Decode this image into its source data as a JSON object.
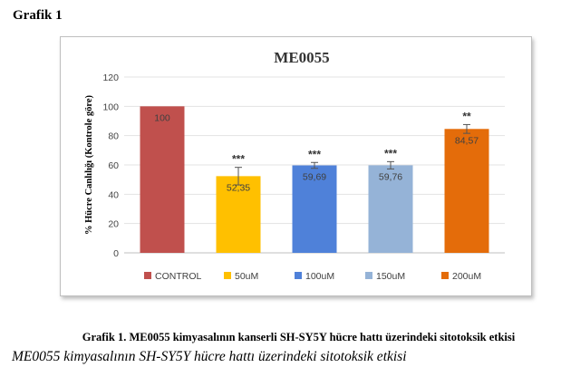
{
  "heading": "Grafik 1",
  "caption": "Grafik    1. ME0055 kimyasalının kanserli SH-SY5Y hücre hattı üzerindeki sitotoksik etkisi",
  "subcaption": "ME0055 kimyasalının SH-SY5Y hücre hattı üzerindeki sitotoksik etkisi",
  "chart_data": {
    "type": "bar",
    "title": "ME0055",
    "ylabel": "% Hücre Canlılığı (Kontrole göre)",
    "xlabel": "",
    "ylim": [
      0,
      120
    ],
    "yticks": [
      0,
      20,
      40,
      60,
      80,
      100,
      120
    ],
    "grid": true,
    "legend_position": "bottom",
    "categories": [
      "CONTROL",
      "50uM",
      "100uM",
      "150uM",
      "200uM"
    ],
    "values": [
      100,
      52.35,
      59.69,
      59.76,
      84.57
    ],
    "value_labels": [
      "100",
      "52,35",
      "59,69",
      "59,76",
      "84,57"
    ],
    "errors": [
      0,
      6,
      2,
      2.5,
      3
    ],
    "significance": [
      "",
      "***",
      "***",
      "***",
      "**"
    ],
    "colors": [
      "#c0504d",
      "#ffc000",
      "#4f81d9",
      "#95b3d7",
      "#e46c0a"
    ]
  }
}
